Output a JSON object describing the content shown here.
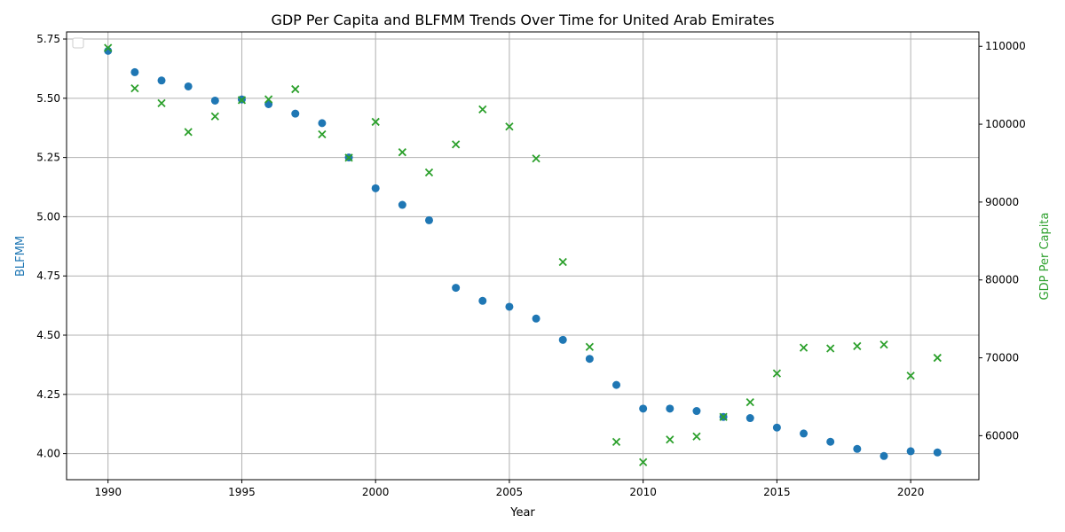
{
  "chart_data": {
    "type": "scatter",
    "title": "GDP Per Capita and BLFMM Trends Over Time for United Arab Emirates",
    "xlabel": "Year",
    "ylabel_left": "BLFMM",
    "ylabel_right": "GDP Per Capita",
    "xlim": [
      1988.45,
      1992.0
    ],
    "xlim_full": [
      1988.45,
      2022.55
    ],
    "ylim_left": [
      3.89,
      5.78
    ],
    "ylim_right": [
      54350,
      111850
    ],
    "x_ticks": [
      1990,
      1995,
      2000,
      2005,
      2010,
      2015,
      2020
    ],
    "y_left_ticks": [
      "4.00",
      "4.25",
      "4.50",
      "4.75",
      "5.00",
      "5.25",
      "5.50",
      "5.75"
    ],
    "y_right_ticks": [
      60000,
      70000,
      80000,
      90000,
      100000,
      110000
    ],
    "grid": true,
    "legend": "top-left (empty)",
    "colors": {
      "blfmm": "#1f77b4",
      "gdp": "#2ca02c"
    },
    "x": [
      1990,
      1991,
      1992,
      1993,
      1994,
      1995,
      1996,
      1997,
      1998,
      1999,
      2000,
      2001,
      2002,
      2003,
      2004,
      2005,
      2006,
      2007,
      2008,
      2009,
      2010,
      2011,
      2012,
      2013,
      2014,
      2015,
      2016,
      2017,
      2018,
      2019,
      2020,
      2021
    ],
    "series": [
      {
        "key": "blfmm",
        "axis": "left",
        "marker": "circle",
        "values": [
          5.7,
          5.61,
          5.575,
          5.55,
          5.49,
          5.495,
          5.475,
          5.435,
          5.395,
          5.25,
          5.12,
          5.05,
          4.985,
          4.7,
          4.645,
          4.62,
          4.57,
          4.48,
          4.4,
          4.29,
          4.19,
          4.19,
          4.18,
          4.155,
          4.15,
          4.11,
          4.085,
          4.05,
          4.02,
          3.99,
          4.01,
          4.005
        ]
      },
      {
        "key": "gdp",
        "axis": "right",
        "marker": "x",
        "values": [
          109800,
          104600,
          102700,
          99000,
          101000,
          103100,
          103200,
          104500,
          98700,
          95700,
          100300,
          96400,
          93800,
          97400,
          101900,
          99700,
          95600,
          82300,
          71400,
          59200,
          56600,
          59500,
          59900,
          62400,
          64300,
          68000,
          71300,
          71200,
          71500,
          71700,
          67700,
          70000
        ]
      }
    ]
  }
}
